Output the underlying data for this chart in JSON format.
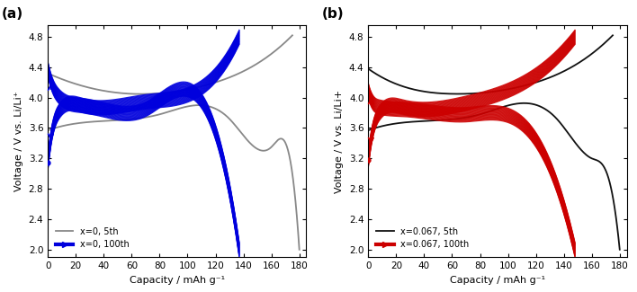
{
  "panel_a": {
    "label": "(a)",
    "xlabel": "Capacity / mAh g⁻¹",
    "ylabel": "Voltage / V vs. Li/Li⁺",
    "xlim": [
      0,
      185
    ],
    "ylim": [
      1.9,
      4.95
    ],
    "xticks": [
      0,
      20,
      40,
      60,
      80,
      100,
      120,
      140,
      160,
      180
    ],
    "yticks": [
      2.0,
      2.4,
      2.8,
      3.2,
      3.6,
      4.0,
      4.4,
      4.8
    ],
    "legend": [
      "x=0, 5th",
      "x=0, 100th"
    ],
    "color_5th": "#888888",
    "color_100th": "#0000dd",
    "lw_5th": 1.3,
    "lw_100th": 2.5,
    "a_charge_5th": [
      [
        0,
        4.32
      ],
      [
        20,
        4.18
      ],
      [
        60,
        4.05
      ],
      [
        110,
        4.15
      ],
      [
        150,
        4.45
      ],
      [
        175,
        4.82
      ]
    ],
    "a_discharge_5th": [
      [
        0,
        3.57
      ],
      [
        30,
        3.68
      ],
      [
        80,
        3.78
      ],
      [
        130,
        3.72
      ],
      [
        160,
        3.35
      ],
      [
        175,
        3.0
      ],
      [
        180,
        2.0
      ]
    ],
    "a_charge_100th_ctrl": [
      [
        0,
        3.15
      ],
      [
        3,
        3.55
      ],
      [
        8,
        3.82
      ],
      [
        25,
        3.9
      ],
      [
        70,
        3.95
      ],
      [
        120,
        4.3
      ],
      [
        137,
        4.8
      ]
    ],
    "a_discharge_100th_ctrl": [
      [
        0,
        4.38
      ],
      [
        3,
        4.18
      ],
      [
        8,
        4.02
      ],
      [
        25,
        3.9
      ],
      [
        70,
        3.85
      ],
      [
        120,
        3.55
      ],
      [
        137,
        2.0
      ]
    ]
  },
  "panel_b": {
    "label": "(b)",
    "xlabel": "Capacity / mAh g⁻¹",
    "ylabel": "Voltage / V vs. Li/Li+",
    "xlim": [
      0,
      185
    ],
    "ylim": [
      1.9,
      4.95
    ],
    "xticks": [
      0,
      20,
      40,
      60,
      80,
      100,
      120,
      140,
      160,
      180
    ],
    "yticks": [
      2.0,
      2.4,
      2.8,
      3.2,
      3.6,
      4.0,
      4.4,
      4.8
    ],
    "legend": [
      "x=0.067, 5th",
      "x=0.067, 100th"
    ],
    "color_5th": "#111111",
    "color_100th": "#cc0000",
    "lw_5th": 1.3,
    "lw_100th": 2.5,
    "b_charge_5th": [
      [
        0,
        4.38
      ],
      [
        20,
        4.18
      ],
      [
        60,
        4.05
      ],
      [
        110,
        4.15
      ],
      [
        150,
        4.45
      ],
      [
        175,
        4.82
      ]
    ],
    "b_discharge_5th": [
      [
        0,
        3.57
      ],
      [
        30,
        3.68
      ],
      [
        80,
        3.78
      ],
      [
        135,
        3.72
      ],
      [
        160,
        3.2
      ],
      [
        175,
        2.7
      ],
      [
        180,
        2.0
      ]
    ],
    "b_charge_100th_ctrl": [
      [
        0,
        3.18
      ],
      [
        3,
        3.55
      ],
      [
        8,
        3.8
      ],
      [
        25,
        3.88
      ],
      [
        70,
        3.93
      ],
      [
        120,
        4.3
      ],
      [
        148,
        4.8
      ]
    ],
    "b_discharge_100th_ctrl": [
      [
        0,
        4.1
      ],
      [
        3,
        3.95
      ],
      [
        8,
        3.88
      ],
      [
        25,
        3.85
      ],
      [
        70,
        3.78
      ],
      [
        120,
        3.45
      ],
      [
        148,
        2.0
      ]
    ]
  }
}
